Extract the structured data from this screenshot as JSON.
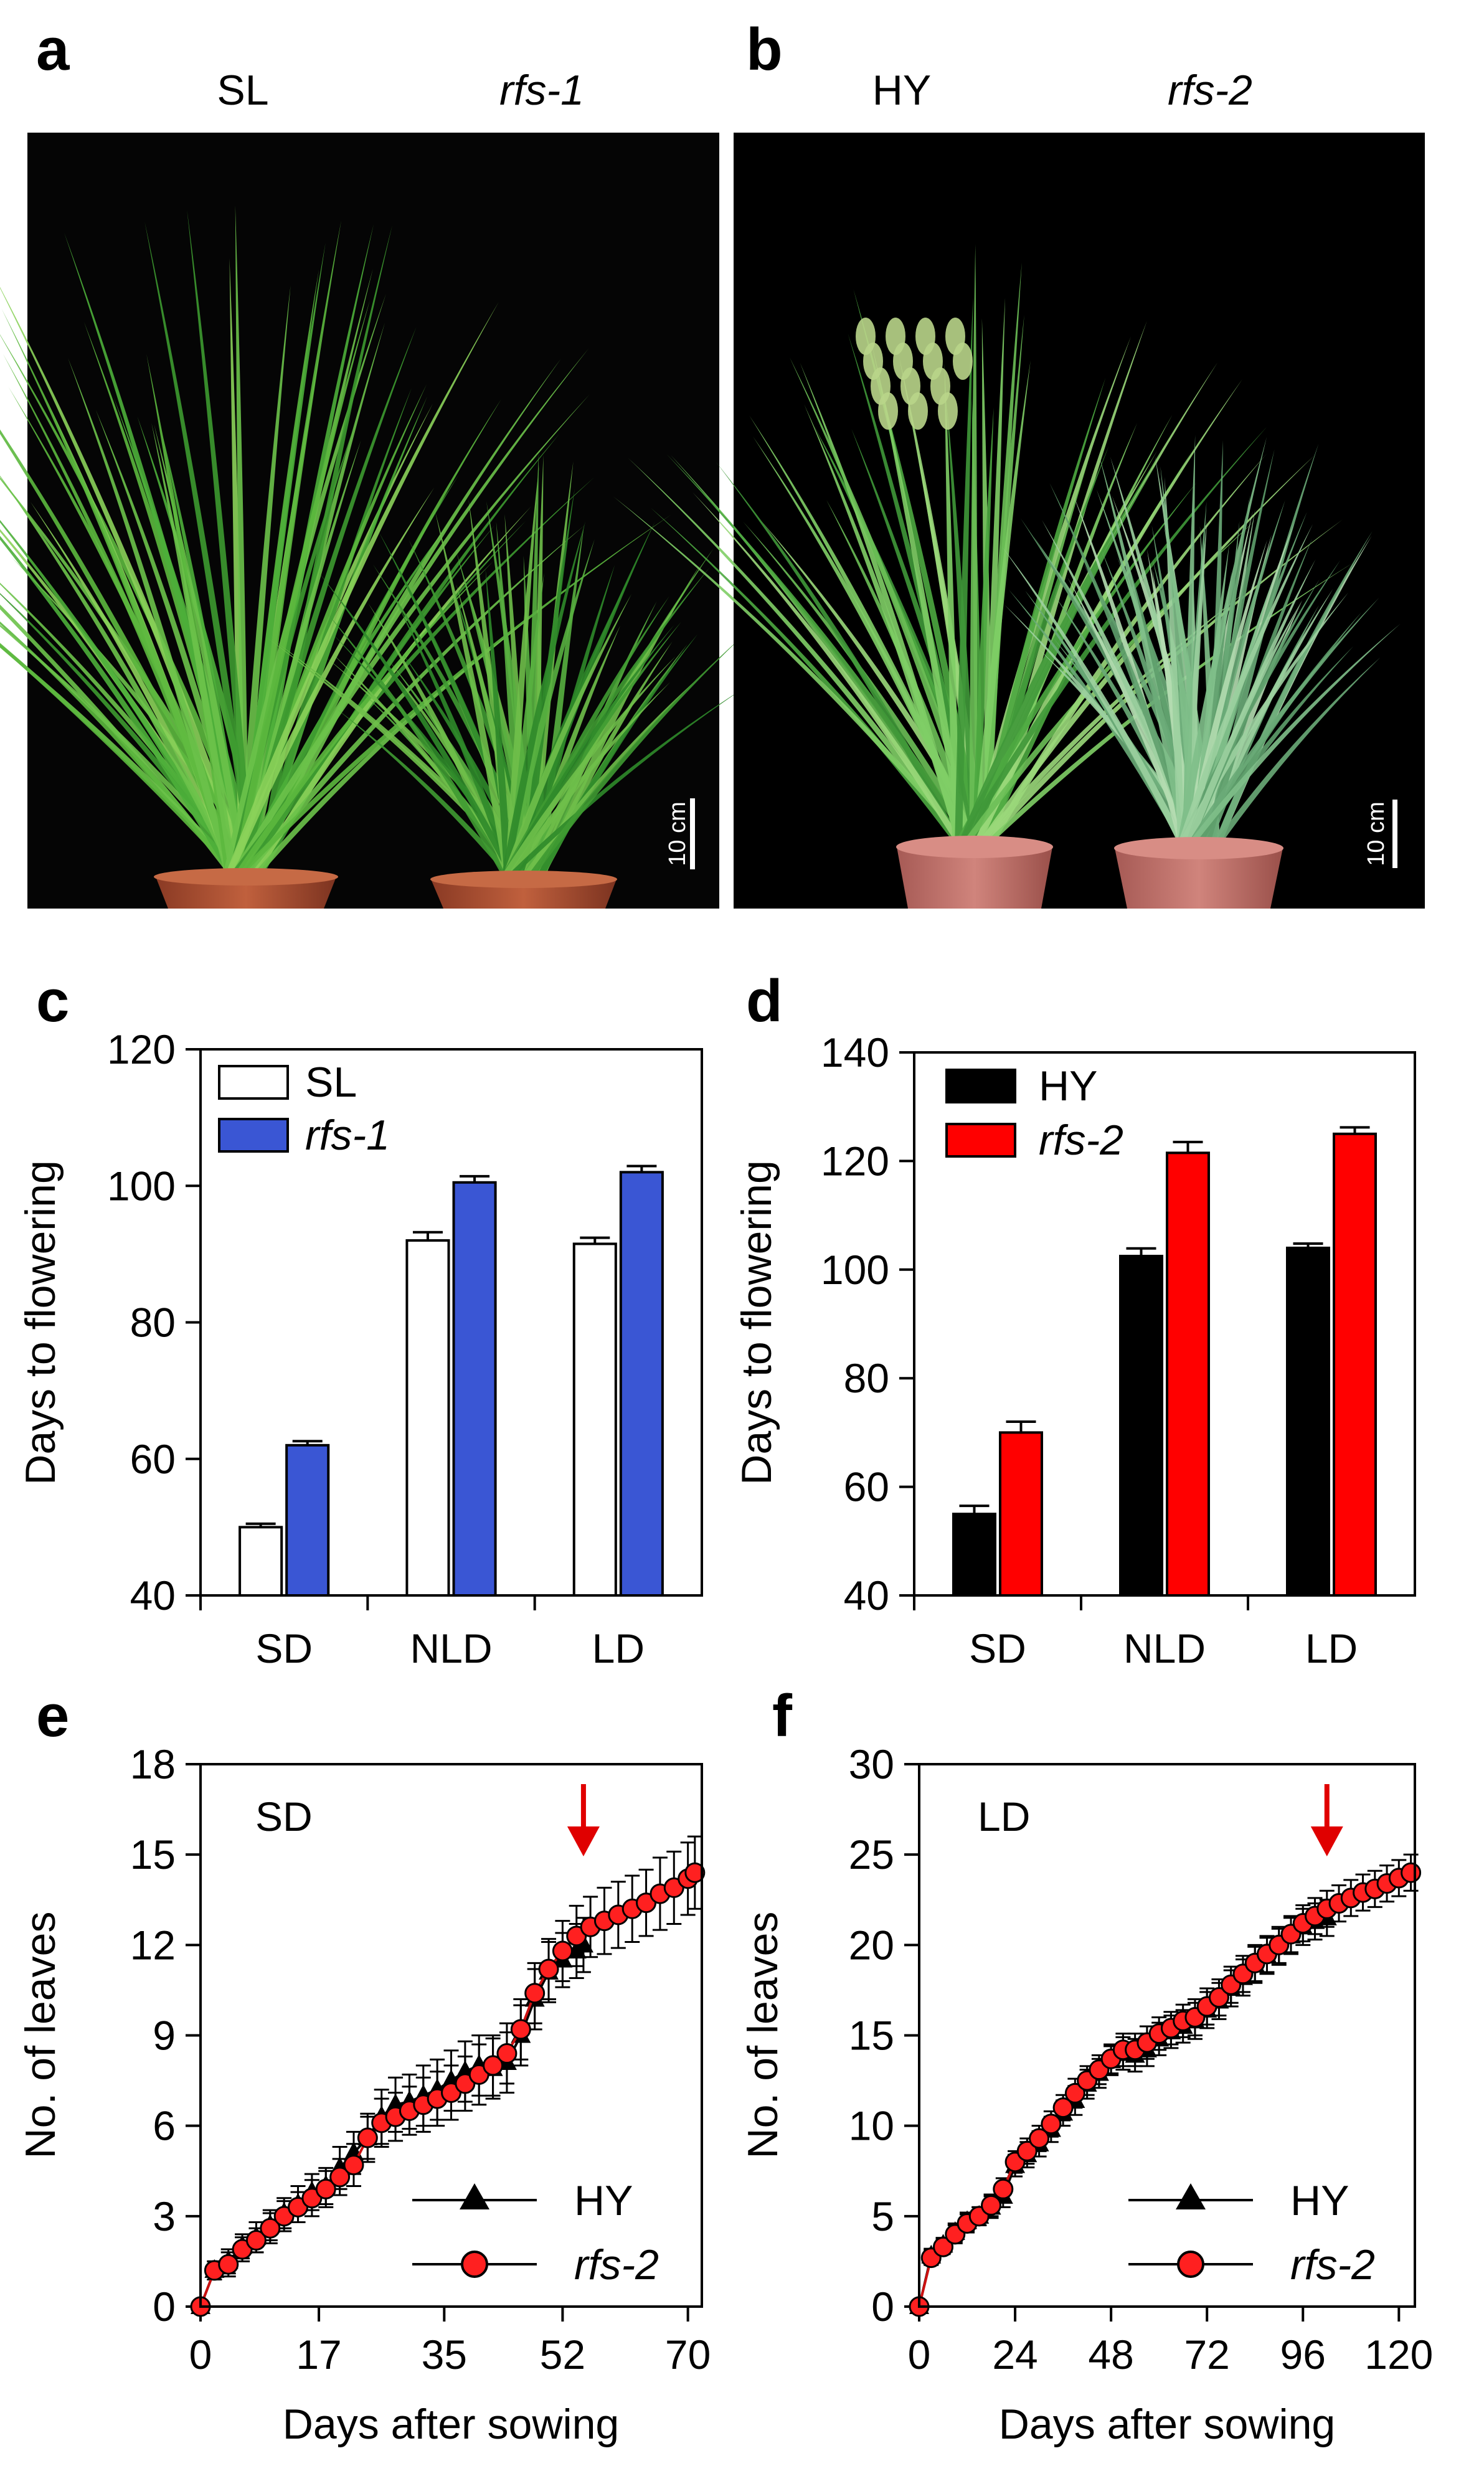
{
  "panels": {
    "a": {
      "letter": "a",
      "left_label": "SL",
      "right_label": "rfs-1",
      "scale": "10 cm"
    },
    "b": {
      "letter": "b",
      "left_label": "HY",
      "right_label": "rfs-2",
      "scale": "10 cm"
    }
  },
  "colors": {
    "sl": "#ffffff",
    "rfs1": "#3a56d4",
    "hy": "#000000",
    "rfs2": "#ff0000",
    "plant_green": "#4caf3a",
    "pot_brown": "#b2553a",
    "pot_red": "#c4706a",
    "photo_bg": "#050505"
  },
  "chart_data": [
    {
      "id": "c",
      "letter": "c",
      "type": "bar",
      "categories": [
        "SD",
        "NLD",
        "LD"
      ],
      "series": [
        {
          "name": "SL",
          "values": [
            50,
            92,
            91.5
          ],
          "errors": [
            0.5,
            1.2,
            0.9
          ]
        },
        {
          "name": "rfs-1",
          "values": [
            62,
            100.5,
            102
          ],
          "errors": [
            0.6,
            0.9,
            0.9
          ]
        }
      ],
      "ylabel": "Days to flowering",
      "xlabel": "",
      "ylim": [
        40,
        120
      ],
      "yticks": [
        "40",
        "60",
        "80",
        "100",
        "120"
      ]
    },
    {
      "id": "d",
      "letter": "d",
      "type": "bar",
      "categories": [
        "SD",
        "NLD",
        "LD"
      ],
      "series": [
        {
          "name": "HY",
          "values": [
            55,
            102.5,
            104
          ],
          "errors": [
            1.5,
            1.4,
            0.8
          ]
        },
        {
          "name": "rfs-2",
          "values": [
            70,
            121.5,
            125
          ],
          "errors": [
            2.0,
            2.0,
            1.2
          ]
        }
      ],
      "ylabel": "Days to flowering",
      "xlabel": "",
      "ylim": [
        40,
        140
      ],
      "yticks": [
        "40",
        "60",
        "80",
        "100",
        "120",
        "140"
      ]
    },
    {
      "id": "e",
      "letter": "e",
      "type": "line",
      "label": "SD",
      "xlabel": "Days after sowing",
      "ylabel": "No. of leaves",
      "xlim": [
        0,
        72
      ],
      "ylim": [
        0,
        18
      ],
      "xticks": [
        0,
        17,
        35,
        52,
        70
      ],
      "yticks": [
        0,
        3,
        6,
        9,
        12,
        15,
        18
      ],
      "arrow_x": 55,
      "series": [
        {
          "name": "HY",
          "marker": "triangle",
          "x": [
            0,
            2,
            4,
            6,
            8,
            10,
            12,
            14,
            16,
            18,
            20,
            22,
            24,
            26,
            28,
            30,
            32,
            34,
            36,
            38,
            40,
            42,
            44,
            46,
            48,
            50,
            52,
            54,
            55
          ],
          "y": [
            0,
            1.2,
            1.5,
            2.0,
            2.3,
            2.7,
            3.1,
            3.4,
            3.8,
            4.0,
            4.6,
            5.1,
            5.6,
            6.3,
            6.7,
            6.8,
            7.0,
            7.2,
            7.5,
            7.8,
            8.0,
            7.9,
            8.1,
            9.0,
            10.2,
            11.1,
            11.5,
            11.8,
            12.0
          ],
          "err": [
            0,
            0.3,
            0.4,
            0.4,
            0.5,
            0.5,
            0.5,
            0.6,
            0.6,
            0.6,
            0.7,
            0.7,
            0.8,
            0.9,
            0.9,
            0.9,
            1.0,
            1.0,
            1.0,
            1.0,
            1.0,
            1.0,
            1.0,
            1.0,
            1.0,
            1.0,
            0.9,
            0.9,
            0.9
          ]
        },
        {
          "name": "rfs-2",
          "marker": "circle",
          "x": [
            0,
            2,
            4,
            6,
            8,
            10,
            12,
            14,
            16,
            18,
            20,
            22,
            24,
            26,
            28,
            30,
            32,
            34,
            36,
            38,
            40,
            42,
            44,
            46,
            48,
            50,
            52,
            54,
            56,
            58,
            60,
            62,
            64,
            66,
            68,
            70,
            71
          ],
          "y": [
            0,
            1.2,
            1.4,
            1.9,
            2.2,
            2.6,
            3.0,
            3.3,
            3.6,
            3.9,
            4.3,
            4.7,
            5.6,
            6.1,
            6.3,
            6.5,
            6.7,
            6.9,
            7.1,
            7.4,
            7.7,
            8.0,
            8.4,
            9.2,
            10.4,
            11.2,
            11.8,
            12.3,
            12.6,
            12.8,
            13.0,
            13.2,
            13.4,
            13.7,
            13.9,
            14.2,
            14.4
          ],
          "err": [
            0,
            0.3,
            0.4,
            0.4,
            0.4,
            0.5,
            0.5,
            0.5,
            0.6,
            0.6,
            0.6,
            0.7,
            0.7,
            0.8,
            0.8,
            0.8,
            0.9,
            0.9,
            0.9,
            0.9,
            1.0,
            1.0,
            1.0,
            1.0,
            1.0,
            1.0,
            1.0,
            1.0,
            1.0,
            1.1,
            1.1,
            1.1,
            1.1,
            1.2,
            1.2,
            1.2,
            1.2
          ]
        }
      ]
    },
    {
      "id": "f",
      "letter": "f",
      "type": "line",
      "label": "LD",
      "xlabel": "Days after sowing",
      "ylabel": "No. of leaves",
      "xlim": [
        0,
        124
      ],
      "ylim": [
        0,
        30
      ],
      "xticks": [
        0,
        24,
        48,
        72,
        96,
        120
      ],
      "yticks": [
        0,
        5,
        10,
        15,
        20,
        25,
        30
      ],
      "arrow_x": 102,
      "series": [
        {
          "name": "HY",
          "marker": "triangle",
          "x": [
            0,
            3,
            6,
            9,
            12,
            15,
            18,
            21,
            24,
            27,
            30,
            33,
            36,
            39,
            42,
            45,
            48,
            51,
            54,
            57,
            60,
            63,
            66,
            69,
            72,
            75,
            78,
            81,
            84,
            87,
            90,
            93,
            96,
            99,
            102
          ],
          "y": [
            0,
            2.8,
            3.4,
            4.1,
            4.7,
            5.0,
            5.5,
            6.1,
            7.8,
            8.4,
            9.0,
            9.8,
            10.7,
            11.4,
            12.3,
            12.9,
            13.6,
            14.0,
            13.9,
            14.2,
            14.8,
            15.2,
            15.5,
            15.8,
            16.4,
            16.9,
            17.6,
            18.2,
            18.9,
            19.4,
            19.9,
            20.5,
            21.0,
            21.3,
            21.5
          ],
          "err": [
            0,
            0.4,
            0.4,
            0.5,
            0.5,
            0.5,
            0.6,
            0.6,
            0.6,
            0.7,
            0.7,
            0.7,
            0.7,
            0.8,
            0.8,
            0.8,
            0.8,
            0.9,
            0.9,
            0.9,
            0.9,
            0.9,
            0.9,
            1.0,
            1.0,
            1.0,
            1.0,
            1.0,
            1.0,
            1.0,
            1.0,
            1.0,
            1.0,
            1.0,
            1.0
          ]
        },
        {
          "name": "rfs-2",
          "marker": "circle",
          "x": [
            0,
            3,
            6,
            9,
            12,
            15,
            18,
            21,
            24,
            27,
            30,
            33,
            36,
            39,
            42,
            45,
            48,
            51,
            54,
            57,
            60,
            63,
            66,
            69,
            72,
            75,
            78,
            81,
            84,
            87,
            90,
            93,
            96,
            99,
            102,
            105,
            108,
            111,
            114,
            117,
            120,
            123
          ],
          "y": [
            0,
            2.7,
            3.3,
            4.0,
            4.6,
            5.0,
            5.6,
            6.5,
            8.0,
            8.6,
            9.3,
            10.1,
            11.0,
            11.8,
            12.5,
            13.1,
            13.7,
            14.2,
            14.2,
            14.6,
            15.1,
            15.4,
            15.8,
            16.0,
            16.6,
            17.1,
            17.8,
            18.4,
            19.0,
            19.5,
            20.0,
            20.6,
            21.2,
            21.6,
            22.0,
            22.3,
            22.6,
            22.9,
            23.1,
            23.4,
            23.7,
            24.0
          ],
          "err": [
            0,
            0.4,
            0.4,
            0.5,
            0.5,
            0.5,
            0.6,
            0.6,
            0.6,
            0.7,
            0.7,
            0.7,
            0.7,
            0.8,
            0.8,
            0.8,
            0.8,
            0.9,
            0.9,
            0.9,
            0.9,
            0.9,
            0.9,
            1.0,
            1.0,
            1.0,
            1.0,
            1.0,
            1.0,
            1.0,
            1.0,
            1.0,
            1.0,
            1.0,
            1.0,
            1.0,
            1.0,
            1.0,
            1.0,
            1.0,
            1.0,
            1.0
          ]
        }
      ]
    }
  ]
}
